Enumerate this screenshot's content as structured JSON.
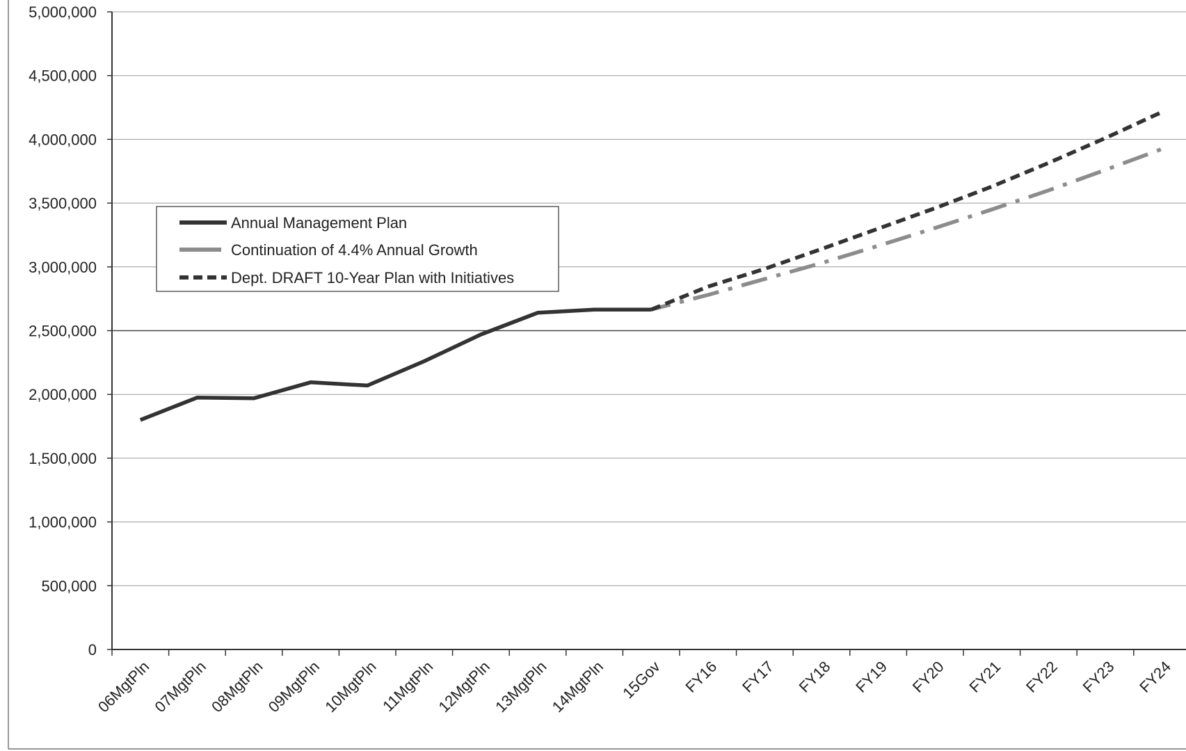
{
  "chart_data": {
    "type": "line",
    "categories": [
      "06MgtPln",
      "07MgtPln",
      "08MgtPln",
      "09MgtPln",
      "10MgtPln",
      "11MgtPln",
      "12MgtPln",
      "13MgtPln",
      "14MgtPln",
      "15Gov",
      "FY16",
      "FY17",
      "FY18",
      "FY19",
      "FY20",
      "FY21",
      "FY22",
      "FY23",
      "FY24"
    ],
    "y_ticks": [
      "0",
      "500,000",
      "1,000,000",
      "1,500,000",
      "2,000,000",
      "2,500,000",
      "3,000,000",
      "3,500,000",
      "4,000,000",
      "4,500,000",
      "5,000,000"
    ],
    "ylim": [
      0,
      5000000
    ],
    "grid": true,
    "legend_position": "upper-left inside plot",
    "series": [
      {
        "name": "Annual Management Plan",
        "color": "#333333",
        "style": "solid",
        "values": [
          1800000,
          1975000,
          1970000,
          2095000,
          2070000,
          2260000,
          2470000,
          2640000,
          2665000,
          2665000,
          null,
          null,
          null,
          null,
          null,
          null,
          null,
          null,
          null
        ]
      },
      {
        "name": "Continuation of 4.4% Annual Growth",
        "color": "#8c8c8c",
        "style": "dash-dot",
        "values": [
          null,
          null,
          null,
          null,
          null,
          null,
          null,
          null,
          2665000,
          2665000,
          2780000,
          2905000,
          3030000,
          3165000,
          3305000,
          3450000,
          3600000,
          3760000,
          3925000
        ]
      },
      {
        "name": "Dept. DRAFT 10-Year Plan with Initiatives",
        "color": "#333333",
        "style": "dashed",
        "values": [
          null,
          null,
          null,
          null,
          null,
          null,
          null,
          null,
          null,
          2665000,
          2845000,
          2985000,
          3140000,
          3300000,
          3460000,
          3630000,
          3815000,
          4010000,
          4215000
        ]
      }
    ]
  }
}
